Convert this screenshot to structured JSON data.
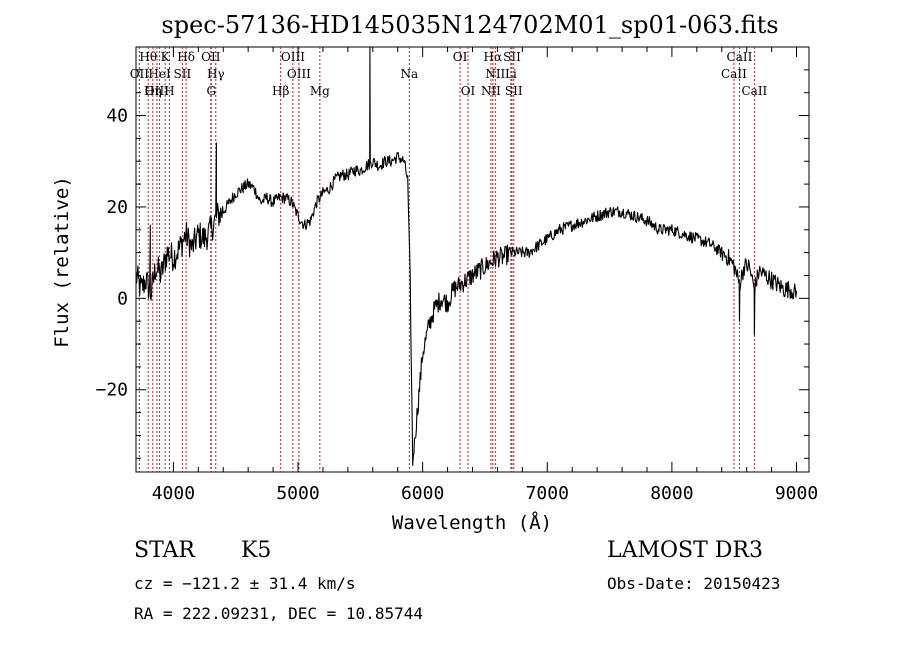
{
  "title": "spec-57136-HD145035N124702M01_sp01-063.fits",
  "info": {
    "class_label": "STAR",
    "subclass": "K5",
    "survey": "LAMOST DR3",
    "cz": "cz = −121.2 ± 31.4 km/s",
    "obs_date": "Obs-Date: 20150423",
    "coords": "RA = 222.09231, DEC =  10.85744"
  },
  "chart_data": {
    "type": "line",
    "title": "spec-57136-HD145035N124702M01_sp01-063.fits",
    "xlabel": "Wavelength (Å)",
    "ylabel": "Flux (relative)",
    "xlim": [
      3700,
      9100
    ],
    "ylim": [
      -38,
      55
    ],
    "x_ticks": [
      4000,
      5000,
      6000,
      7000,
      8000,
      9000
    ],
    "x_tick_labels": [
      "4000",
      "5000",
      "6000",
      "7000",
      "8000",
      "9000"
    ],
    "y_ticks": [
      -20,
      0,
      20,
      40
    ],
    "y_tick_labels": [
      "−20",
      "0",
      "20",
      "40"
    ],
    "grid": false,
    "line_color": "#000000",
    "marker_line_color": "#b22222",
    "line_markers": [
      {
        "label": "Hθ",
        "x": 3798,
        "row": 0
      },
      {
        "label": "K",
        "x": 3934,
        "row": 0
      },
      {
        "label": "Hδ",
        "x": 4102,
        "row": 0
      },
      {
        "label": "OII",
        "x": 4300,
        "row": 0
      },
      {
        "label": "OIII",
        "x": 4959,
        "row": 0
      },
      {
        "label": "OI",
        "x": 6300,
        "row": 0
      },
      {
        "label": "Hα",
        "x": 6563,
        "row": 0
      },
      {
        "label": "SII",
        "x": 6717,
        "row": 0
      },
      {
        "label": "CaII",
        "x": 8542,
        "row": 0
      },
      {
        "label": "OII",
        "x": 3727,
        "row": 1
      },
      {
        "label": "HeI",
        "x": 3889,
        "row": 1
      },
      {
        "label": "SII",
        "x": 4072,
        "row": 1
      },
      {
        "label": "Hγ",
        "x": 4340,
        "row": 1
      },
      {
        "label": "OIII",
        "x": 5007,
        "row": 1
      },
      {
        "label": "Na",
        "x": 5893,
        "row": 1
      },
      {
        "label": "NII",
        "x": 6583,
        "row": 1
      },
      {
        "label": "Li",
        "x": 6708,
        "row": 1
      },
      {
        "label": "CaII",
        "x": 8498,
        "row": 1
      },
      {
        "label": "OIII",
        "x": 3868,
        "row": 2
      },
      {
        "label": "Hη",
        "x": 3835,
        "row": 2
      },
      {
        "label": "H",
        "x": 3968,
        "row": 2
      },
      {
        "label": "G",
        "x": 4304,
        "row": 2
      },
      {
        "label": "Hβ",
        "x": 4861,
        "row": 2
      },
      {
        "label": "Mg",
        "x": 5175,
        "row": 2
      },
      {
        "label": "OI",
        "x": 6364,
        "row": 2
      },
      {
        "label": "NII",
        "x": 6548,
        "row": 2
      },
      {
        "label": "SII",
        "x": 6731,
        "row": 2
      },
      {
        "label": "CaII",
        "x": 8662,
        "row": 2
      }
    ],
    "series": [
      {
        "x": [
          3700,
          3740,
          3780,
          3820,
          3860,
          3900,
          3950,
          4000,
          4050,
          4100,
          4150,
          4200,
          4250,
          4300,
          4350,
          4400,
          4450,
          4500,
          4550,
          4600,
          4650,
          4700,
          4750,
          4800,
          4850,
          4900,
          4950,
          5000,
          5050,
          5100,
          5150,
          5200,
          5250,
          5300,
          5350,
          5400,
          5450,
          5500,
          5550,
          5600,
          5650,
          5700,
          5750,
          5800,
          5850,
          5880,
          5900,
          5920,
          5940,
          5960,
          5980,
          6000,
          6050,
          6100,
          6150,
          6200,
          6250,
          6300,
          6350,
          6400,
          6450,
          6500,
          6550,
          6600,
          6650,
          6700,
          6750,
          6800,
          6850,
          6900,
          6950,
          7000,
          7100,
          7200,
          7300,
          7400,
          7500,
          7600,
          7700,
          7800,
          7900,
          8000,
          8100,
          8200,
          8300,
          8400,
          8450,
          8500,
          8542,
          8580,
          8620,
          8662,
          8700,
          8750,
          8800,
          8850,
          8900,
          8950,
          9000
        ],
        "y": [
          5,
          2,
          4,
          1,
          7,
          5,
          10,
          9,
          11,
          14,
          11,
          14,
          13,
          15,
          18,
          19,
          21,
          23,
          24,
          25,
          24,
          21,
          22,
          21,
          22,
          22,
          21,
          18,
          16,
          17,
          21,
          23,
          24,
          26,
          27,
          27,
          28,
          28,
          29,
          30,
          29,
          30,
          30,
          31,
          30,
          26,
          4,
          -36,
          -30,
          -24,
          -18,
          -12,
          -6,
          -2,
          0,
          -1,
          2,
          3,
          4,
          5,
          6,
          7,
          8,
          9,
          9,
          10,
          10,
          10,
          10,
          11,
          12,
          13,
          15,
          16,
          17,
          18,
          19,
          19,
          18,
          17,
          15,
          15,
          14,
          13,
          12,
          10,
          9,
          7,
          3,
          7,
          7,
          2,
          6,
          5,
          4,
          3,
          2,
          2,
          1
        ]
      }
    ],
    "spikes": [
      {
        "x": 3815,
        "y": 16
      },
      {
        "x": 4345,
        "y": 34
      },
      {
        "x": 5577,
        "y": 60
      },
      {
        "x": 8542,
        "y": -5
      },
      {
        "x": 8662,
        "y": -8
      }
    ]
  }
}
